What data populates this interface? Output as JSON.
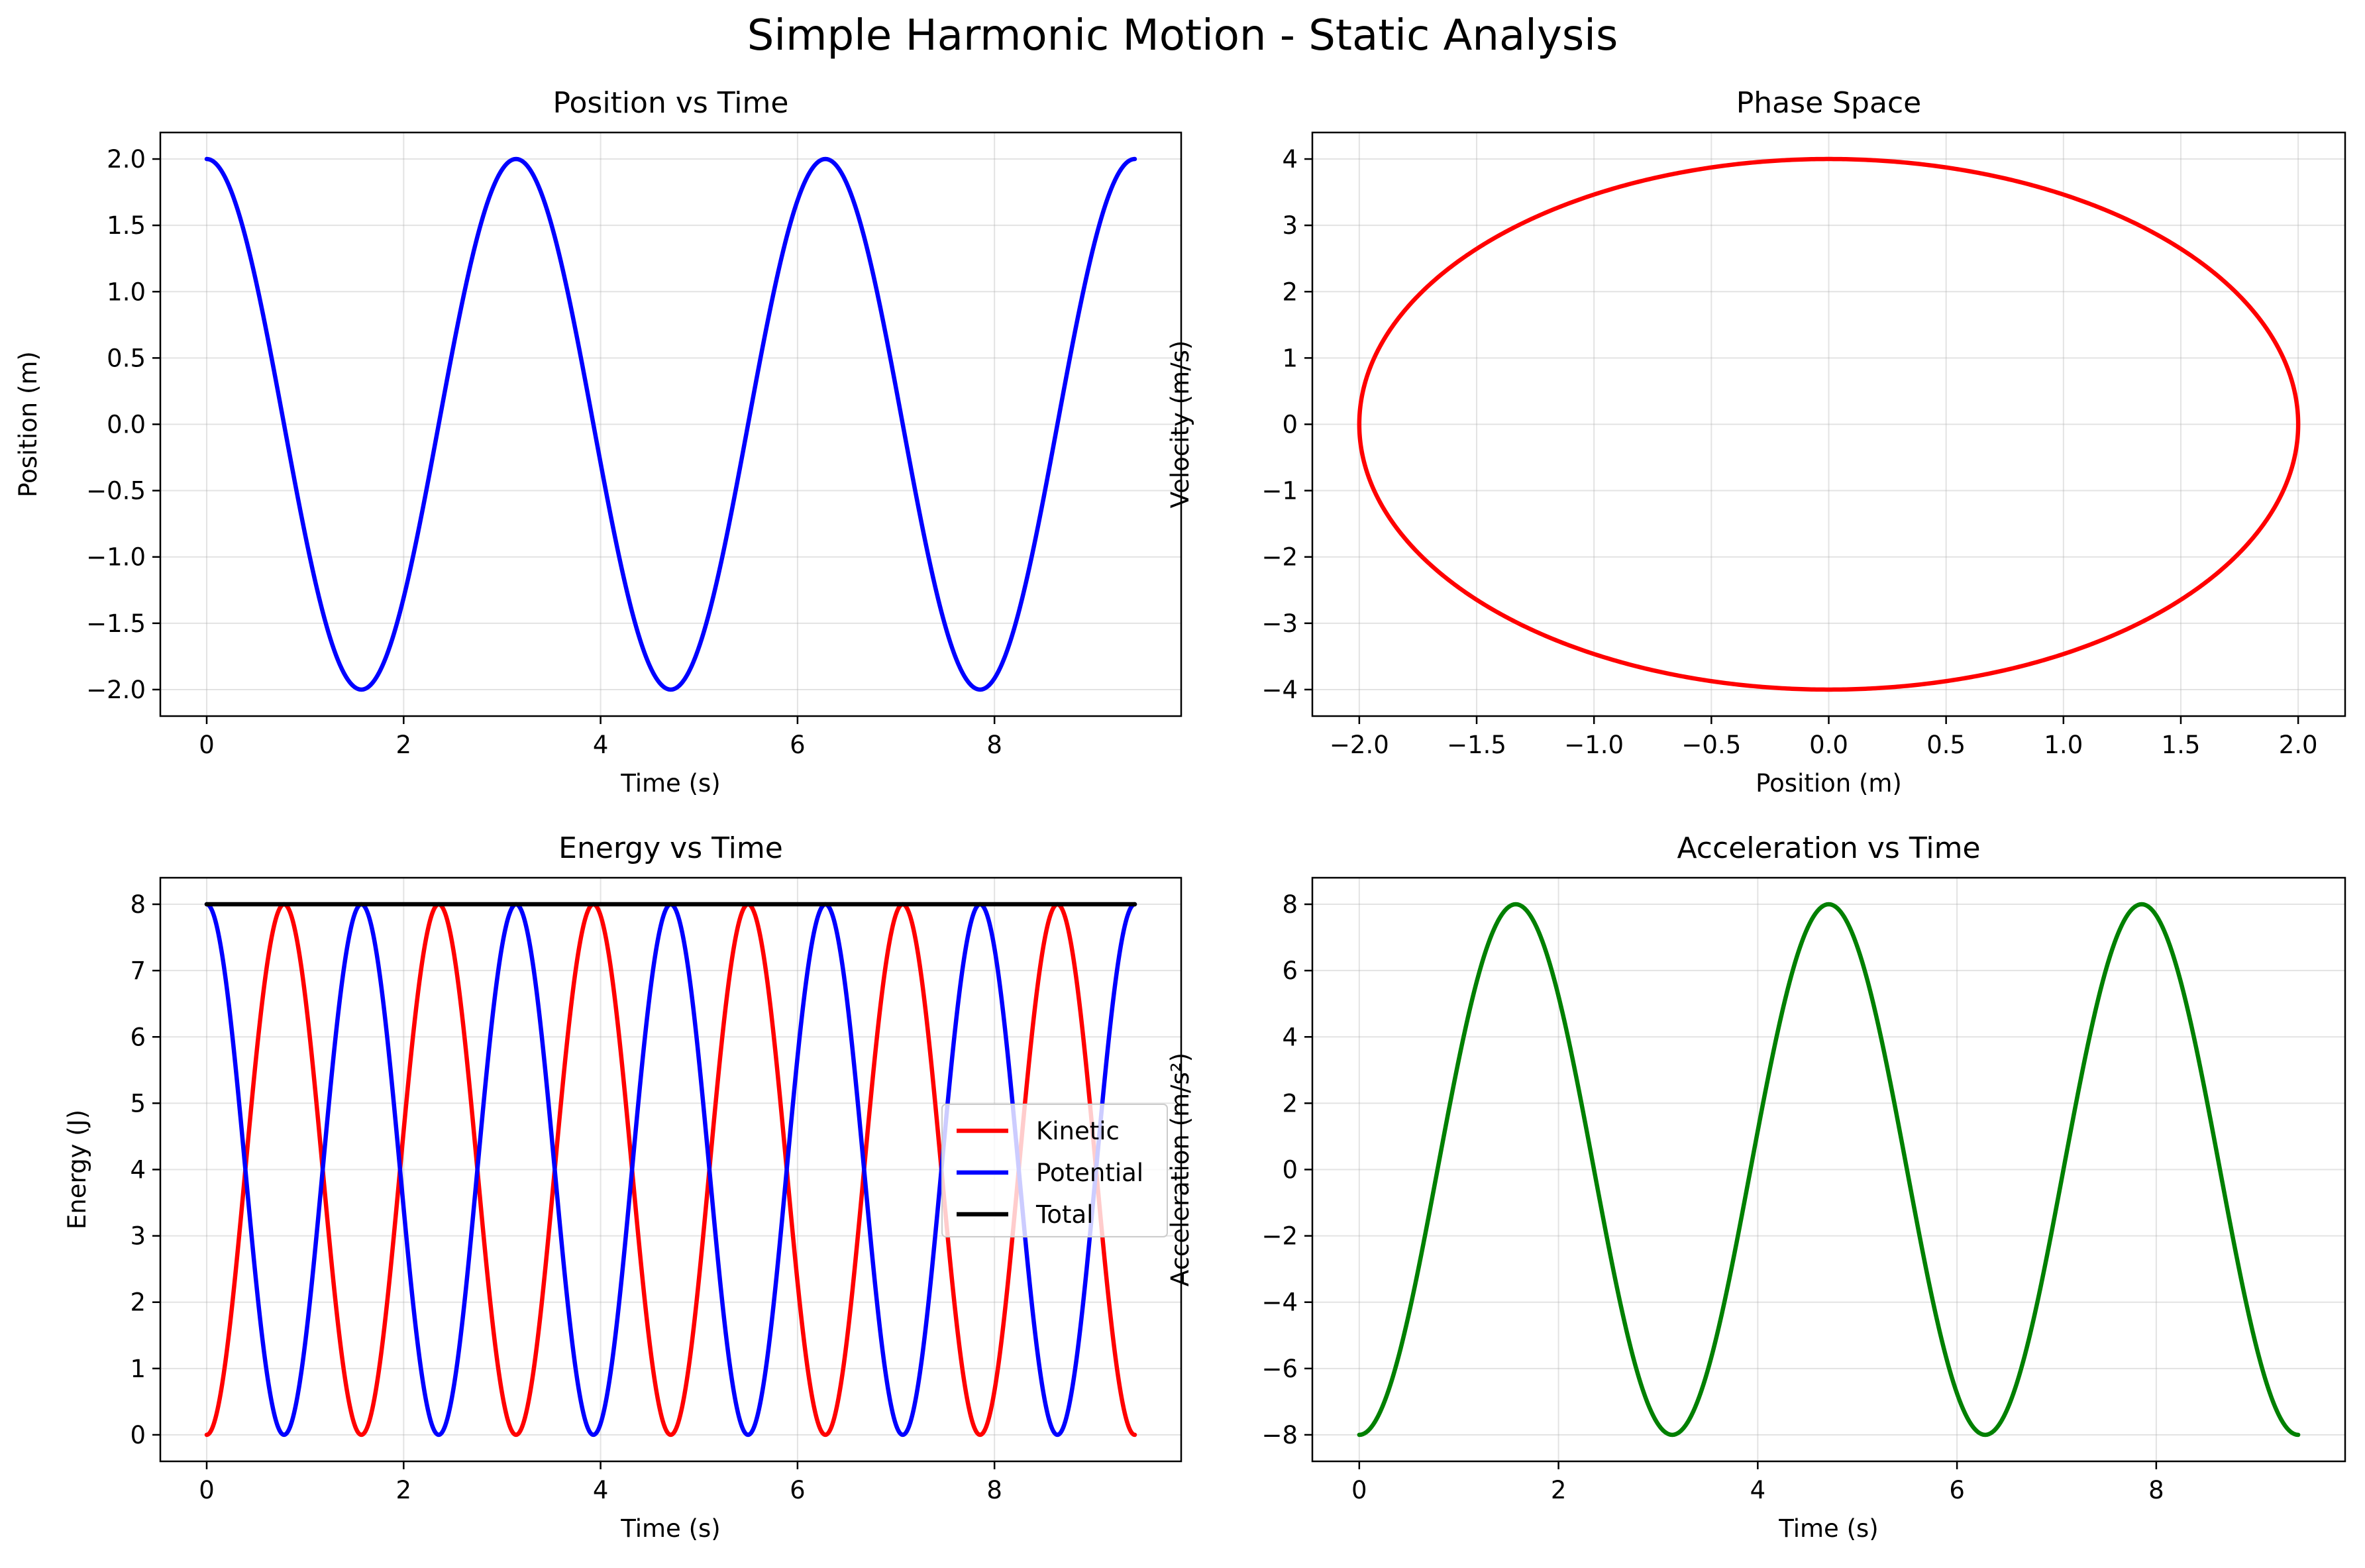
{
  "figure": {
    "title": "Simple Harmonic Motion - Static Analysis"
  },
  "chart_data": [
    {
      "id": "position",
      "type": "line",
      "title": "Position vs Time",
      "xlabel": "Time (s)",
      "ylabel": "Position (m)",
      "xlim": [
        -0.471,
        9.896
      ],
      "ylim": [
        -2.2,
        2.2
      ],
      "xticks": [
        0,
        2,
        4,
        6,
        8
      ],
      "xtick_labels": [
        "0",
        "2",
        "4",
        "6",
        "8"
      ],
      "yticks": [
        -2.0,
        -1.5,
        -1.0,
        -0.5,
        0.0,
        0.5,
        1.0,
        1.5,
        2.0
      ],
      "ytick_labels": [
        "−2.0",
        "−1.5",
        "−1.0",
        "−0.5",
        "0.0",
        "0.5",
        "1.0",
        "1.5",
        "2.0"
      ],
      "grid": true,
      "series": [
        {
          "formula": "x(t) = 2 cos(2t)",
          "color": "#0000ff",
          "x_range": [
            0,
            9.4248
          ],
          "amplitude": 2.0,
          "angular_frequency": 2.0
        }
      ]
    },
    {
      "id": "phase",
      "type": "line",
      "title": "Phase Space",
      "xlabel": "Position (m)",
      "ylabel": "Velocity (m/s)",
      "xlim": [
        -2.2,
        2.2
      ],
      "ylim": [
        -4.4,
        4.4
      ],
      "xticks": [
        -2.0,
        -1.5,
        -1.0,
        -0.5,
        0.0,
        0.5,
        1.0,
        1.5,
        2.0
      ],
      "xtick_labels": [
        "−2.0",
        "−1.5",
        "−1.0",
        "−0.5",
        "0.0",
        "0.5",
        "1.0",
        "1.5",
        "2.0"
      ],
      "yticks": [
        -4,
        -3,
        -2,
        -1,
        0,
        1,
        2,
        3,
        4
      ],
      "ytick_labels": [
        "−4",
        "−3",
        "−2",
        "−1",
        "0",
        "1",
        "2",
        "3",
        "4"
      ],
      "grid": true,
      "series": [
        {
          "formula": "ellipse: position = 2 cos(2t), velocity = -4 sin(2t)",
          "color": "#ff0000",
          "position_amplitude": 2.0,
          "velocity_amplitude": 4.0
        }
      ]
    },
    {
      "id": "energy",
      "type": "line",
      "title": "Energy vs Time",
      "xlabel": "Time (s)",
      "ylabel": "Energy (J)",
      "xlim": [
        -0.471,
        9.896
      ],
      "ylim": [
        -0.4,
        8.4
      ],
      "xticks": [
        0,
        2,
        4,
        6,
        8
      ],
      "xtick_labels": [
        "0",
        "2",
        "4",
        "6",
        "8"
      ],
      "yticks": [
        0,
        1,
        2,
        3,
        4,
        5,
        6,
        7,
        8
      ],
      "ytick_labels": [
        "0",
        "1",
        "2",
        "3",
        "4",
        "5",
        "6",
        "7",
        "8"
      ],
      "grid": true,
      "legend": "center-right",
      "series": [
        {
          "name": "Kinetic",
          "formula": "KE(t) = 8 sin²(2t)",
          "color": "#ff0000",
          "x_range": [
            0,
            9.4248
          ]
        },
        {
          "name": "Potential",
          "formula": "PE(t) = 8 cos²(2t)",
          "color": "#0000ff",
          "x_range": [
            0,
            9.4248
          ]
        },
        {
          "name": "Total",
          "formula": "E = 8",
          "color": "#000000",
          "x_range": [
            0,
            9.4248
          ]
        }
      ]
    },
    {
      "id": "acceleration",
      "type": "line",
      "title": "Acceleration vs Time",
      "xlabel": "Time (s)",
      "ylabel": "Acceleration (m/s²)",
      "xlim": [
        -0.471,
        9.896
      ],
      "ylim": [
        -8.8,
        8.8
      ],
      "xticks": [
        0,
        2,
        4,
        6,
        8
      ],
      "xtick_labels": [
        "0",
        "2",
        "4",
        "6",
        "8"
      ],
      "yticks": [
        -8,
        -6,
        -4,
        -2,
        0,
        2,
        4,
        6,
        8
      ],
      "ytick_labels": [
        "−8",
        "−6",
        "−4",
        "−2",
        "0",
        "2",
        "4",
        "6",
        "8"
      ],
      "grid": true,
      "series": [
        {
          "formula": "a(t) = -8 cos(2t)",
          "color": "#008000",
          "x_range": [
            0,
            9.4248
          ],
          "amplitude": 8.0,
          "angular_frequency": 2.0
        }
      ]
    }
  ]
}
